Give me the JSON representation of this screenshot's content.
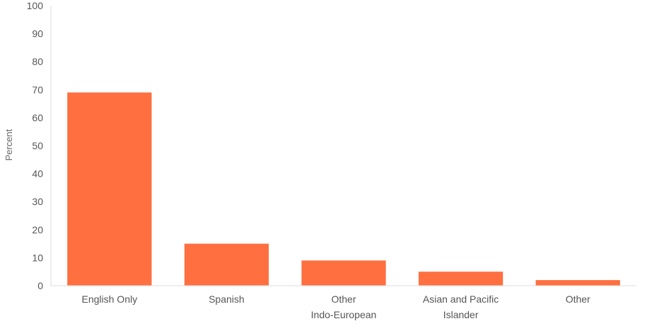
{
  "chart_data": {
    "type": "bar",
    "categories": [
      [
        "English Only"
      ],
      [
        "Spanish"
      ],
      [
        "Other",
        "Indo-European"
      ],
      [
        "Asian and Pacific",
        "Islander"
      ],
      [
        "Other"
      ]
    ],
    "values": [
      69,
      15,
      9,
      5,
      2
    ],
    "title": "",
    "xlabel": "",
    "ylabel": "Percent",
    "ylim": [
      0,
      100
    ],
    "yticks": [
      0,
      10,
      20,
      30,
      40,
      50,
      60,
      70,
      80,
      90,
      100
    ],
    "grid": false,
    "bar_color": "#ff6f40",
    "axis_color": "#dddddd",
    "text_color": "#555555"
  }
}
